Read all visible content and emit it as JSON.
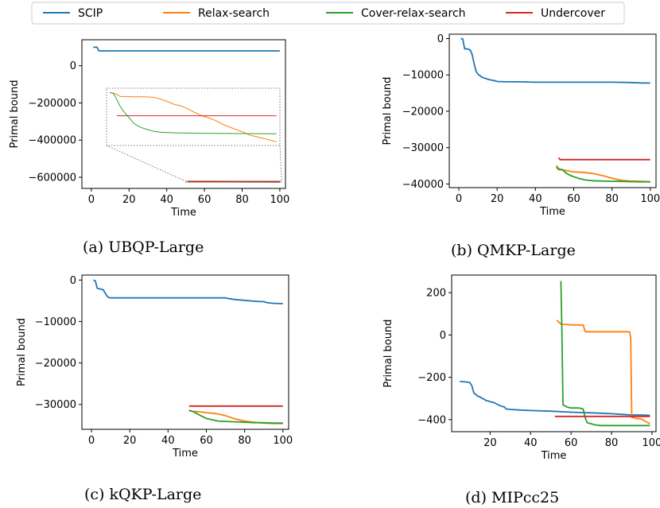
{
  "colors": {
    "SCIP": "#1f77b4",
    "Relax-search": "#ff7f0e",
    "Cover-relax-search": "#2ca02c",
    "Undercover": "#d62728"
  },
  "legend": {
    "position": "top-center",
    "entries": [
      "SCIP",
      "Relax-search",
      "Cover-relax-search",
      "Undercover"
    ]
  },
  "chart_data": [
    {
      "type": "line",
      "caption": "(a) UBQP-Large",
      "xlabel": "Time",
      "ylabel": "Primal bound",
      "xlim": [
        -5,
        103
      ],
      "ylim": [
        -660000,
        140000
      ],
      "xticks": [
        0,
        20,
        40,
        60,
        80,
        100
      ],
      "yticks": [
        0,
        -200000,
        -400000,
        -600000
      ],
      "xtick_labels": [
        "0",
        "20",
        "40",
        "60",
        "80",
        "100"
      ],
      "ytick_labels": [
        "0",
        "−200000",
        "−400000",
        "−600000"
      ],
      "grid": false,
      "series": [
        {
          "name": "SCIP",
          "x": [
            1,
            3,
            4,
            100
          ],
          "y": [
            100000,
            100000,
            80000,
            80000
          ]
        },
        {
          "name": "Relax-search",
          "x": [
            51,
            100
          ],
          "y": [
            -622000,
            -624000
          ]
        },
        {
          "name": "Cover-relax-search",
          "x": [
            51,
            100
          ],
          "y": [
            -623000,
            -625000
          ]
        },
        {
          "name": "Undercover",
          "x": [
            51,
            100
          ],
          "y": [
            -623500,
            -623500
          ]
        }
      ],
      "inset": {
        "xlim": [
          50,
          101
        ],
        "ylim": [
          -626200,
          -621000
        ],
        "series": [
          {
            "name": "SCIP",
            "x": [],
            "y": []
          },
          {
            "name": "Relax-search",
            "x": [
              51,
              52,
              53,
              54,
              56,
              58,
              60,
              62,
              64,
              66,
              68,
              70,
              72,
              74,
              76,
              78,
              80,
              82,
              84,
              86,
              88,
              90,
              92,
              94,
              96,
              98,
              100
            ],
            "y": [
              -621400,
              -621450,
              -621550,
              -621750,
              -621750,
              -621770,
              -621780,
              -621790,
              -621830,
              -622000,
              -622220,
              -622480,
              -622600,
              -622900,
              -623200,
              -623500,
              -623680,
              -623920,
              -624250,
              -624500,
              -624750,
              -624950,
              -625250,
              -625400,
              -625550,
              -625700,
              -625850
            ]
          },
          {
            "name": "Cover-relax-search",
            "x": [
              51,
              52,
              53,
              54,
              55,
              56,
              57,
              58,
              60,
              62,
              64,
              66,
              70,
              75,
              80,
              90,
              100
            ],
            "y": [
              -621400,
              -621450,
              -622000,
              -622650,
              -623100,
              -623450,
              -623800,
              -624200,
              -624550,
              -624750,
              -624920,
              -625000,
              -625050,
              -625080,
              -625100,
              -625120,
              -625130
            ]
          },
          {
            "name": "Undercover",
            "x": [
              53,
              100
            ],
            "y": [
              -623500,
              -623500
            ]
          }
        ]
      }
    },
    {
      "type": "line",
      "caption": "(b) QMKP-Large",
      "xlabel": "Time",
      "ylabel": "Primal bound",
      "xlim": [
        -5,
        103
      ],
      "ylim": [
        -41000,
        1200
      ],
      "xticks": [
        0,
        20,
        40,
        60,
        80,
        100
      ],
      "yticks": [
        0,
        -10000,
        -20000,
        -30000,
        -40000
      ],
      "xtick_labels": [
        "0",
        "20",
        "40",
        "60",
        "80",
        "100"
      ],
      "ytick_labels": [
        "0",
        "−10000",
        "−20000",
        "−30000",
        "−40000"
      ],
      "grid": false,
      "series": [
        {
          "name": "SCIP",
          "x": [
            1,
            2,
            3,
            5,
            6,
            7,
            8,
            9,
            10,
            11,
            12,
            14,
            16,
            18,
            20,
            25,
            30,
            35,
            40,
            50,
            60,
            70,
            80,
            90,
            95,
            100
          ],
          "y": [
            0,
            -100,
            -2800,
            -2900,
            -3200,
            -4500,
            -7000,
            -9000,
            -9800,
            -10200,
            -10600,
            -11000,
            -11300,
            -11500,
            -11800,
            -11900,
            -11900,
            -11950,
            -12000,
            -12000,
            -12000,
            -12000,
            -12000,
            -12100,
            -12200,
            -12250
          ]
        },
        {
          "name": "Relax-search",
          "x": [
            51,
            52,
            53,
            54,
            56,
            58,
            60,
            65,
            70,
            75,
            80,
            85,
            90,
            95,
            100
          ],
          "y": [
            -34900,
            -35700,
            -35900,
            -36100,
            -36300,
            -36500,
            -36700,
            -36800,
            -37100,
            -37700,
            -38400,
            -39000,
            -39200,
            -39300,
            -39400
          ]
        },
        {
          "name": "Cover-relax-search",
          "x": [
            51,
            52,
            53,
            54,
            55,
            56,
            58,
            60,
            63,
            66,
            70,
            75,
            80,
            85,
            90,
            95,
            100
          ],
          "y": [
            -35300,
            -36000,
            -36100,
            -36000,
            -36500,
            -37000,
            -37600,
            -38000,
            -38500,
            -38900,
            -39100,
            -39200,
            -39250,
            -39300,
            -39350,
            -39400,
            -39400
          ]
        },
        {
          "name": "Undercover",
          "x": [
            52,
            53,
            55,
            100
          ],
          "y": [
            -32800,
            -33300,
            -33300,
            -33300
          ]
        }
      ]
    },
    {
      "type": "line",
      "caption": "(c) kQKP-Large",
      "xlabel": "Time",
      "ylabel": "Primal bound",
      "xlim": [
        -5,
        103
      ],
      "ylim": [
        -36000,
        1200
      ],
      "xticks": [
        0,
        20,
        40,
        60,
        80,
        100
      ],
      "yticks": [
        0,
        -10000,
        -20000,
        -30000
      ],
      "xtick_labels": [
        "0",
        "20",
        "40",
        "60",
        "80",
        "100"
      ],
      "ytick_labels": [
        "0",
        "−10000",
        "−20000",
        "−30000"
      ],
      "grid": false,
      "series": [
        {
          "name": "SCIP",
          "x": [
            1,
            2,
            3,
            4,
            5,
            6,
            7,
            8,
            9,
            10,
            20,
            30,
            40,
            50,
            60,
            70,
            72,
            75,
            80,
            85,
            88,
            90,
            92,
            95,
            100
          ],
          "y": [
            0,
            -200,
            -2000,
            -2100,
            -2200,
            -2300,
            -3000,
            -3800,
            -4200,
            -4300,
            -4300,
            -4300,
            -4300,
            -4300,
            -4300,
            -4300,
            -4500,
            -4700,
            -4900,
            -5100,
            -5200,
            -5200,
            -5500,
            -5600,
            -5700
          ]
        },
        {
          "name": "Relax-search",
          "x": [
            51,
            53,
            55,
            57,
            60,
            65,
            70,
            75,
            80,
            85,
            90,
            95,
            100
          ],
          "y": [
            -31500,
            -31700,
            -31700,
            -31800,
            -32000,
            -32200,
            -32700,
            -33500,
            -34000,
            -34300,
            -34500,
            -34600,
            -34600
          ]
        },
        {
          "name": "Cover-relax-search",
          "x": [
            51,
            53,
            55,
            57,
            60,
            63,
            66,
            70,
            75,
            80,
            85,
            90,
            95,
            100
          ],
          "y": [
            -31400,
            -31700,
            -32200,
            -32700,
            -33400,
            -33700,
            -34000,
            -34100,
            -34200,
            -34300,
            -34400,
            -34400,
            -34500,
            -34500
          ]
        },
        {
          "name": "Undercover",
          "x": [
            51,
            100
          ],
          "y": [
            -30400,
            -30400
          ]
        }
      ]
    },
    {
      "type": "line",
      "caption": "(d) MIPcc25",
      "xlabel": "Time",
      "ylabel": "Primal bound",
      "xlim": [
        1,
        102
      ],
      "ylim": [
        -457,
        283
      ],
      "xticks": [
        20,
        40,
        60,
        80,
        100
      ],
      "yticks": [
        200,
        0,
        -200,
        -400
      ],
      "xtick_labels": [
        "20",
        "40",
        "60",
        "80",
        "100"
      ],
      "ytick_labels": [
        "200",
        "0",
        "−200",
        "−400"
      ],
      "grid": false,
      "series": [
        {
          "name": "SCIP",
          "x": [
            5,
            8,
            10,
            11,
            12,
            13,
            14,
            15,
            16,
            17,
            18,
            19,
            20,
            22,
            24,
            26,
            27,
            28,
            30,
            35,
            40,
            50,
            60,
            70,
            75,
            80,
            85,
            90,
            95,
            99
          ],
          "y": [
            -220,
            -222,
            -225,
            -240,
            -275,
            -282,
            -290,
            -292,
            -300,
            -303,
            -310,
            -312,
            -315,
            -320,
            -330,
            -338,
            -340,
            -350,
            -352,
            -355,
            -357,
            -360,
            -365,
            -368,
            -370,
            -372,
            -375,
            -378,
            -378,
            -380
          ]
        },
        {
          "name": "Relax-search",
          "x": [
            53,
            54,
            55,
            56,
            60,
            62,
            64,
            66,
            67,
            68,
            70,
            75,
            80,
            85,
            89,
            89.5,
            90,
            91,
            92,
            93,
            95,
            97,
            99
          ],
          "y": [
            70,
            60,
            52,
            50,
            48,
            47,
            47,
            47,
            15,
            15,
            15,
            15,
            15,
            15,
            15,
            -20,
            -390,
            -390,
            -395,
            -395,
            -398,
            -410,
            -420
          ]
        },
        {
          "name": "Cover-relax-search",
          "x": [
            55,
            55.5,
            56,
            58,
            60,
            62,
            64,
            66,
            67,
            68,
            70,
            72,
            75,
            80,
            85,
            90,
            95,
            99
          ],
          "y": [
            255,
            0,
            -330,
            -340,
            -345,
            -345,
            -345,
            -350,
            -390,
            -415,
            -420,
            -425,
            -428,
            -428,
            -428,
            -428,
            -428,
            -428
          ]
        },
        {
          "name": "Undercover",
          "x": [
            52,
            99
          ],
          "y": [
            -385,
            -385
          ]
        }
      ]
    }
  ]
}
